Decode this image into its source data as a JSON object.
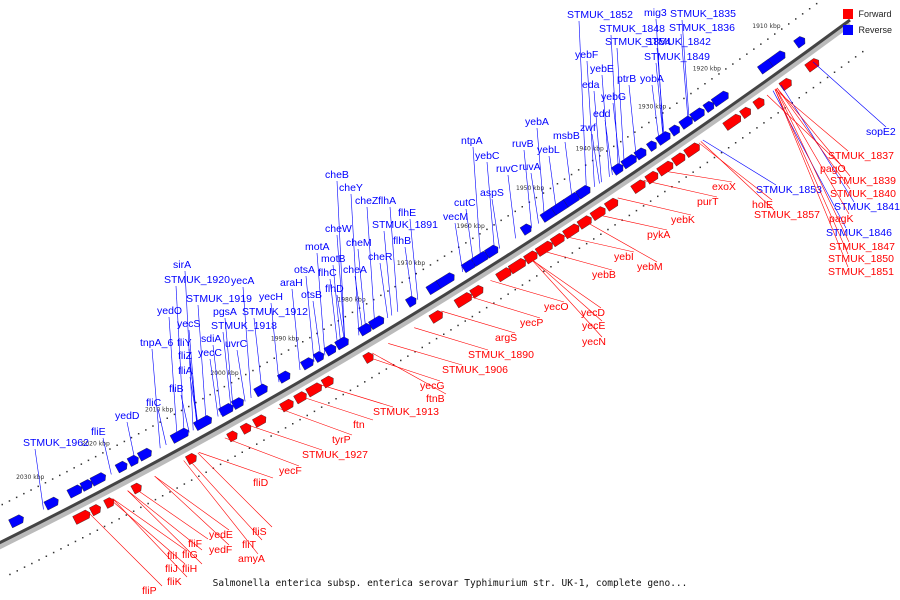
{
  "legend": {
    "forward": {
      "label": "Forward",
      "color": "#ff0000"
    },
    "reverse": {
      "label": "Reverse",
      "color": "#0000ff"
    }
  },
  "caption": "Salmonella enterica subsp. enterica serovar Typhimurium str. UK-1, complete geno...",
  "kbp_ticks": [
    "1910 kbp",
    "1920 kbp",
    "1930 kbp",
    "1940 kbp",
    "1950 kbp",
    "1960 kbp",
    "1970 kbp",
    "1980 kbp",
    "1990 kbp",
    "2000 kbp",
    "2010 kbp",
    "2020 kbp",
    "2030 kbp"
  ],
  "reverse_genes": [
    "STMUK_1852",
    "mig3",
    "STMUK_1835",
    "STMUK_1848",
    "STMUK_1836",
    "STMUK_1854",
    "STMUK_1842",
    "yebF",
    "STMUK_1849",
    "yebE",
    "ptrB",
    "yobA",
    "eda",
    "yebG",
    "edd",
    "zwf",
    "yebA",
    "msbB",
    "ruvB",
    "yebL",
    "ntpA",
    "yebC",
    "ruvC",
    "ruvA",
    "aspS",
    "cutC",
    "vecM",
    "cheB",
    "cheY",
    "cheZ",
    "flhA",
    "flhE",
    "cheW",
    "STMUK_1891",
    "cheM",
    "flhB",
    "motA",
    "cheR",
    "motB",
    "otsA",
    "cheA",
    "flhC",
    "araH",
    "otsB",
    "flhD",
    "sirA",
    "STMUK_1920",
    "yecA",
    "yecH",
    "STMUK_1919",
    "pgsA",
    "STMUK_1912",
    "yedO",
    "yecS",
    "STMUK_1918",
    "sdiA",
    "uvrC",
    "tnpA_6",
    "fliY",
    "fliZ",
    "yecC",
    "fliA",
    "fliB",
    "fliC",
    "yedD",
    "fliE",
    "STMUK_1962"
  ],
  "right_reverse_genes": [
    "sopE2",
    "STMUK_1853",
    "STMUK_1841",
    "STMUK_1846"
  ],
  "forward_genes": [
    "STMUK_1837",
    "pagO",
    "STMUK_1839",
    "STMUK_1840",
    "exoX",
    "holE",
    "pagK",
    "STMUK_1857",
    "STMUK_1847",
    "STMUK_1850",
    "STMUK_1851",
    "purT",
    "yebK",
    "pykA",
    "yebI",
    "yebM",
    "yebB",
    "yecD",
    "yecO",
    "yecE",
    "yecP",
    "yecN",
    "argS",
    "STMUK_1890",
    "STMUK_1906",
    "yecG",
    "ftnB",
    "STMUK_1913",
    "ftn",
    "tyrP",
    "STMUK_1927",
    "yecF",
    "fliD",
    "fliS",
    "yedE",
    "fliT",
    "fliF",
    "yedF",
    "amyA",
    "fliI",
    "fliG",
    "fliJ",
    "fliH",
    "fliK",
    "fliP"
  ]
}
